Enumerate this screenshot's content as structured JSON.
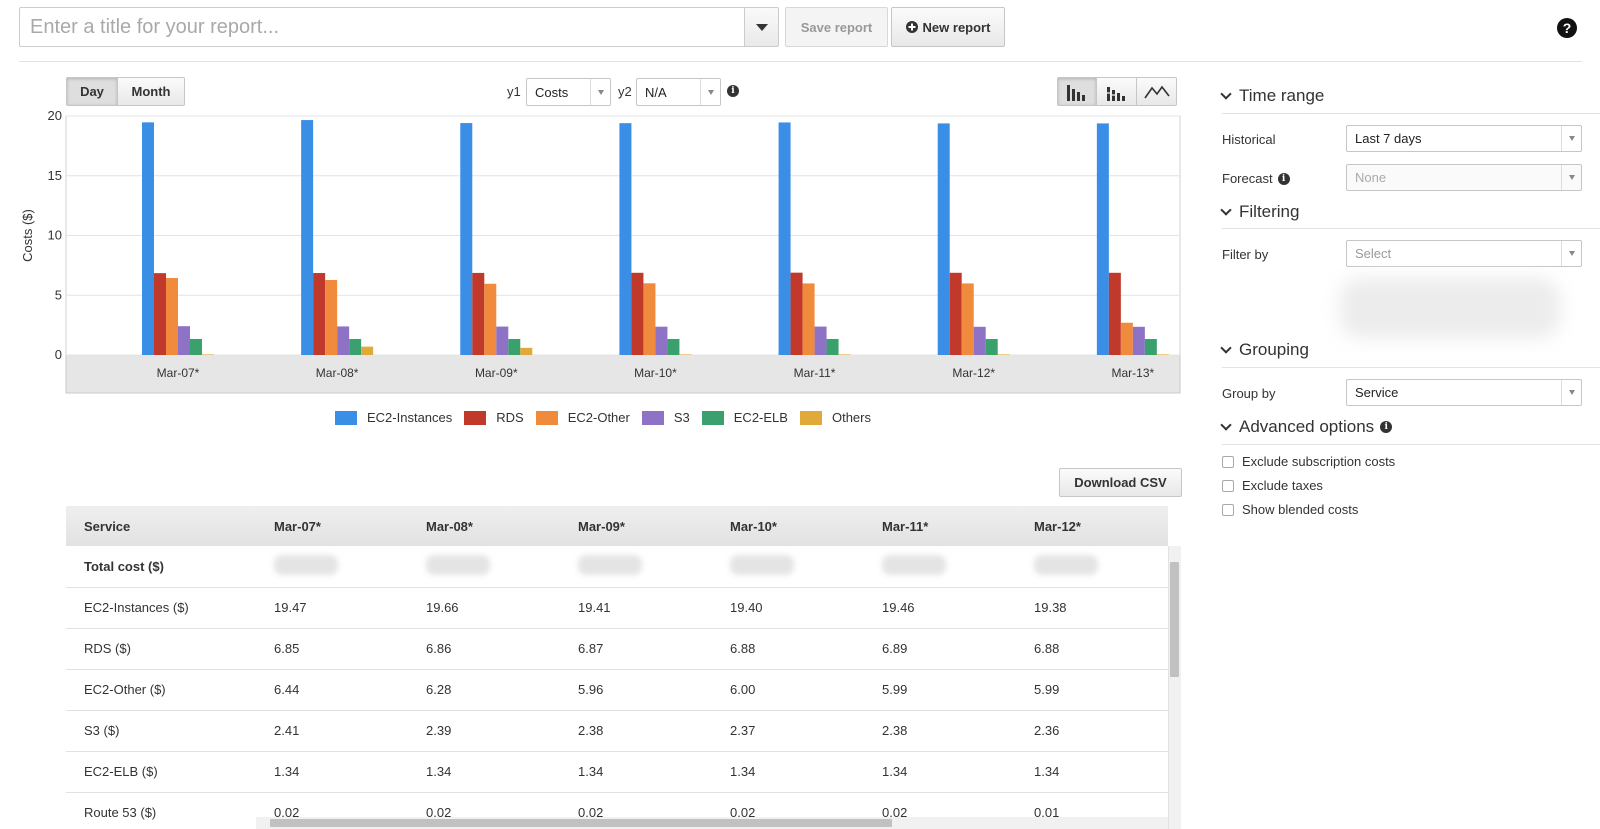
{
  "header": {
    "title_placeholder": "Enter a title for your report...",
    "save_label": "Save report",
    "new_label": "New report",
    "new_icon": "plus-circle-icon",
    "help_icon": "?"
  },
  "toolbar": {
    "granularity": [
      "Day",
      "Month"
    ],
    "active_granularity": "Day",
    "y1_label": "y1",
    "y1_value": "Costs",
    "y2_label": "y2",
    "y2_value": "N/A",
    "info_glyph": "i",
    "chart_types": [
      "bar-chart-icon",
      "stacked-bar-icon",
      "line-chart-icon"
    ]
  },
  "chart_data": {
    "type": "bar",
    "categories": [
      "Mar-07*",
      "Mar-08*",
      "Mar-09*",
      "Mar-10*",
      "Mar-11*",
      "Mar-12*",
      "Mar-13*"
    ],
    "series": [
      {
        "name": "EC2-Instances",
        "color": "#3a8ee6",
        "values": [
          19.47,
          19.66,
          19.41,
          19.4,
          19.46,
          19.38,
          19.38
        ]
      },
      {
        "name": "RDS",
        "color": "#c0392b",
        "values": [
          6.85,
          6.86,
          6.87,
          6.88,
          6.89,
          6.88,
          6.88
        ]
      },
      {
        "name": "EC2-Other",
        "color": "#f08a3c",
        "values": [
          6.44,
          6.28,
          5.96,
          6.0,
          5.99,
          5.99,
          2.7
        ]
      },
      {
        "name": "S3",
        "color": "#8e72c5",
        "values": [
          2.41,
          2.39,
          2.38,
          2.37,
          2.38,
          2.36,
          2.36
        ]
      },
      {
        "name": "EC2-ELB",
        "color": "#3aa16e",
        "values": [
          1.34,
          1.34,
          1.34,
          1.34,
          1.34,
          1.34,
          1.34
        ]
      },
      {
        "name": "Others",
        "color": "#e0a93a",
        "values": [
          0.05,
          0.7,
          0.6,
          0.05,
          0.05,
          0.05,
          0.05
        ]
      }
    ],
    "xlabel": "",
    "ylabel": "Costs ($)",
    "ylim": [
      0,
      20
    ],
    "yticks": [
      0,
      5,
      10,
      15,
      20
    ],
    "grid": true,
    "legend": "bottom"
  },
  "table": {
    "download_label": "Download CSV",
    "columns": [
      "Service",
      "Mar-07*",
      "Mar-08*",
      "Mar-09*",
      "Mar-10*",
      "Mar-11*",
      "Mar-12*"
    ],
    "rows": [
      {
        "label": "Total cost ($)",
        "values": [
          "",
          "",
          "",
          "",
          "",
          ""
        ],
        "redacted": true
      },
      {
        "label": "EC2-Instances ($)",
        "values": [
          "19.47",
          "19.66",
          "19.41",
          "19.40",
          "19.46",
          "19.38"
        ]
      },
      {
        "label": "RDS ($)",
        "values": [
          "6.85",
          "6.86",
          "6.87",
          "6.88",
          "6.89",
          "6.88"
        ]
      },
      {
        "label": "EC2-Other ($)",
        "values": [
          "6.44",
          "6.28",
          "5.96",
          "6.00",
          "5.99",
          "5.99"
        ]
      },
      {
        "label": "S3 ($)",
        "values": [
          "2.41",
          "2.39",
          "2.38",
          "2.37",
          "2.38",
          "2.36"
        ]
      },
      {
        "label": "EC2-ELB ($)",
        "values": [
          "1.34",
          "1.34",
          "1.34",
          "1.34",
          "1.34",
          "1.34"
        ]
      },
      {
        "label": "Route 53 ($)",
        "values": [
          "0.02",
          "0.02",
          "0.02",
          "0.02",
          "0.02",
          "0.01"
        ]
      }
    ]
  },
  "panel": {
    "time_range": {
      "heading": "Time range",
      "historical_label": "Historical",
      "historical_value": "Last 7 days",
      "forecast_label": "Forecast",
      "forecast_value": "None"
    },
    "filtering": {
      "heading": "Filtering",
      "filter_label": "Filter by",
      "filter_placeholder": "Select"
    },
    "grouping": {
      "heading": "Grouping",
      "group_label": "Group by",
      "group_value": "Service"
    },
    "advanced": {
      "heading": "Advanced options",
      "options": [
        "Exclude subscription costs",
        "Exclude taxes",
        "Show blended costs"
      ]
    }
  }
}
